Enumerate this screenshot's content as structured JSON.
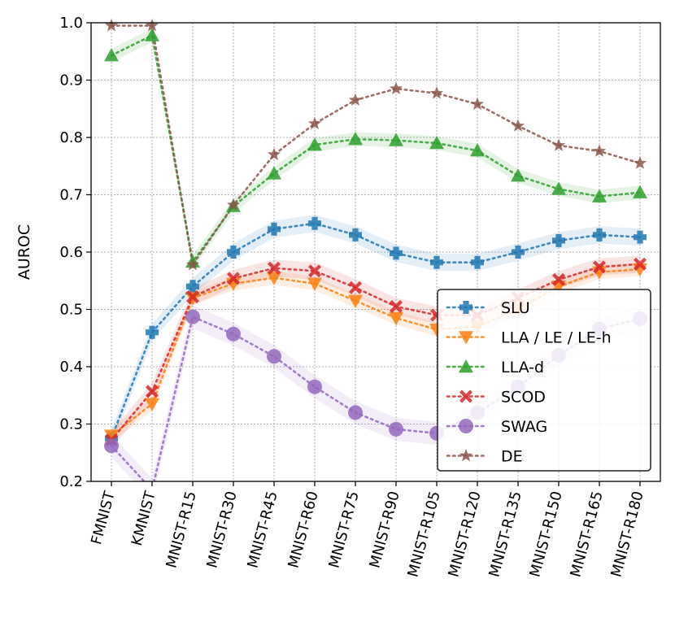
{
  "chart_data": {
    "type": "line",
    "title": "",
    "xlabel": "",
    "ylabel": "AUROC",
    "ylim": [
      0.2,
      1.0
    ],
    "yticks": [
      "0.2",
      "0.3",
      "0.4",
      "0.5",
      "0.6",
      "0.7",
      "0.8",
      "0.9",
      "1.0"
    ],
    "grid": true,
    "legend_position": "lower-right",
    "categories": [
      "FMNIST",
      "KMNIST",
      "MNIST-R15",
      "MNIST-R30",
      "MNIST-R45",
      "MNIST-R60",
      "MNIST-R75",
      "MNIST-R90",
      "MNIST-R105",
      "MNIST-R120",
      "MNIST-R135",
      "MNIST-R150",
      "MNIST-R165",
      "MNIST-R180"
    ],
    "series": [
      {
        "name": "SLU",
        "color": "#1f77b4",
        "marker": "plus",
        "band": 0.015,
        "values": [
          0.275,
          0.46,
          0.54,
          0.6,
          0.64,
          0.65,
          0.63,
          0.598,
          0.582,
          0.582,
          0.6,
          0.62,
          0.63,
          0.626
        ]
      },
      {
        "name": "LLA / LE / LE-h",
        "color": "#ff7f0e",
        "marker": "triangle-down",
        "band": 0.012,
        "values": [
          0.28,
          0.335,
          0.52,
          0.545,
          0.555,
          0.545,
          0.515,
          0.485,
          0.465,
          0.47,
          0.5,
          0.54,
          0.565,
          0.57
        ]
      },
      {
        "name": "LLA-d",
        "color": "#2ca02c",
        "marker": "triangle-up",
        "band": 0.012,
        "values": [
          0.943,
          0.978,
          0.583,
          0.68,
          0.737,
          0.787,
          0.797,
          0.795,
          0.79,
          0.777,
          0.733,
          0.71,
          0.697,
          0.704
        ]
      },
      {
        "name": "SCOD",
        "color": "#d62728",
        "marker": "x",
        "band": 0.015,
        "values": [
          0.272,
          0.357,
          0.522,
          0.554,
          0.572,
          0.567,
          0.538,
          0.505,
          0.49,
          0.49,
          0.52,
          0.552,
          0.574,
          0.579
        ]
      },
      {
        "name": "SWAG",
        "color": "#9467bd",
        "marker": "circle",
        "band": 0.02,
        "values": [
          0.262,
          0.185,
          0.487,
          0.457,
          0.418,
          0.365,
          0.32,
          0.291,
          0.284,
          0.32,
          0.365,
          0.42,
          0.466,
          0.484
        ]
      },
      {
        "name": "DE",
        "color": "#8c564b",
        "marker": "star",
        "band": 0.0,
        "values": [
          0.995,
          0.995,
          0.578,
          0.682,
          0.77,
          0.824,
          0.865,
          0.885,
          0.877,
          0.858,
          0.82,
          0.786,
          0.776,
          0.755
        ]
      }
    ]
  }
}
